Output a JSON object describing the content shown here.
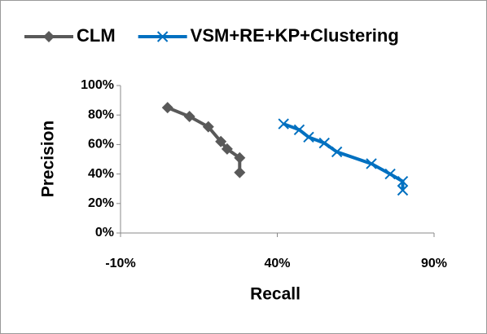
{
  "chart_data": {
    "type": "line",
    "xlabel": "Recall",
    "ylabel": "Precision",
    "xlim": [
      -10,
      90
    ],
    "xticks": [
      {
        "value": -10,
        "label": "-10%"
      },
      {
        "value": 40,
        "label": "40%"
      },
      {
        "value": 90,
        "label": "90%"
      }
    ],
    "ylim": [
      0,
      100
    ],
    "yticks": [
      {
        "value": 0,
        "label": "0%"
      },
      {
        "value": 20,
        "label": "20%"
      },
      {
        "value": 40,
        "label": "40%"
      },
      {
        "value": 60,
        "label": "60%"
      },
      {
        "value": 80,
        "label": "80%"
      },
      {
        "value": 100,
        "label": "100%"
      }
    ],
    "legend": "top",
    "series": [
      {
        "name": "CLM",
        "color": "#595959",
        "marker": "diamond",
        "x": [
          5,
          12,
          18,
          22,
          24,
          28,
          28
        ],
        "values": [
          85,
          79,
          72,
          62,
          57,
          51,
          41
        ]
      },
      {
        "name": "VSM+RE+KP+Clustering",
        "color": "#0070c0",
        "marker": "x",
        "x": [
          42,
          47,
          50,
          55,
          59,
          70,
          76,
          80,
          80
        ],
        "values": [
          74,
          70,
          65,
          61,
          55,
          47,
          40,
          35,
          29
        ]
      }
    ]
  }
}
